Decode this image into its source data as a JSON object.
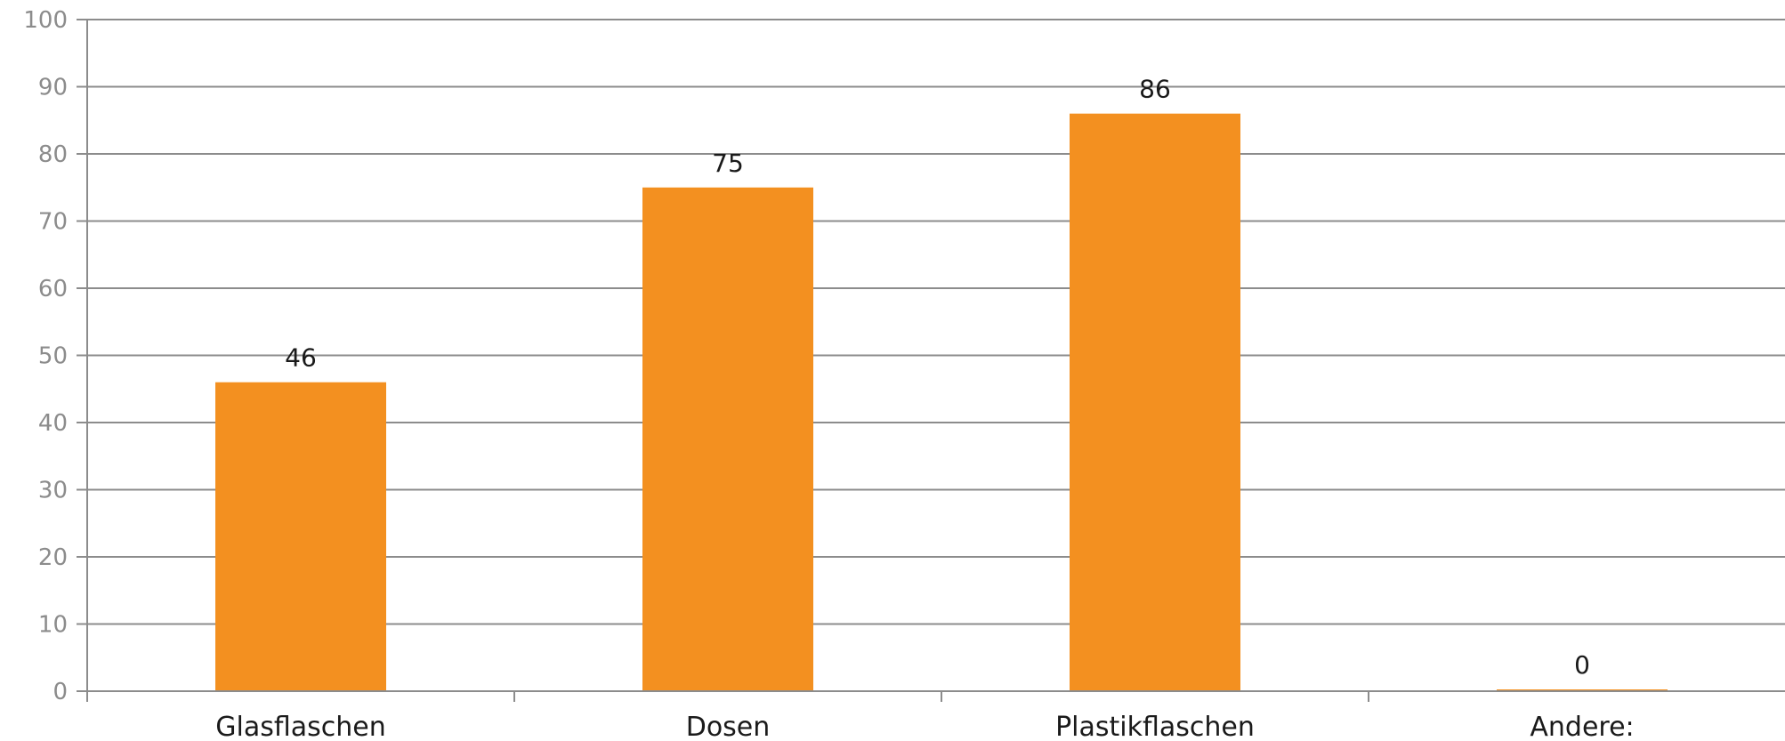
{
  "chart_data": {
    "type": "bar",
    "categories": [
      "Glasflaschen",
      "Dosen",
      "Plastikflaschen",
      "Andere:"
    ],
    "values": [
      46,
      75,
      86,
      0
    ],
    "data_labels": [
      "46",
      "75",
      "86",
      "0"
    ],
    "ylim": [
      0,
      100
    ],
    "yticks": [
      0,
      10,
      20,
      30,
      40,
      50,
      60,
      70,
      80,
      90,
      100
    ],
    "ytick_labels": [
      "0",
      "10",
      "20",
      "30",
      "40",
      "50",
      "60",
      "70",
      "80",
      "90",
      "100"
    ],
    "grid": true,
    "legend": "none",
    "bar_color": "#f39020",
    "grid_color": "#8c8c8c"
  }
}
